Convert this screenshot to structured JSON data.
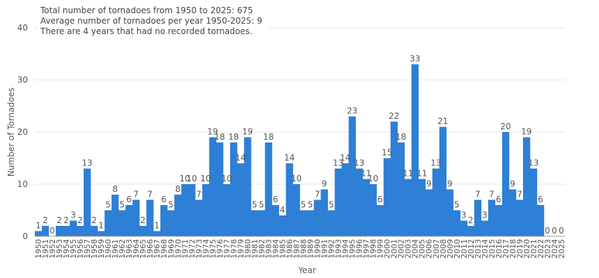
{
  "notes": [
    "Total number of tornadoes from 1950 to 2025: 675",
    "Average number of tornadoes per year 1950-2025: 9",
    "There are 4 years that had no recorded tornadoes."
  ],
  "colors": {
    "bar": "#2e7fd6",
    "grid": "#e4e4e4",
    "text": "#555555",
    "axis": "#999999"
  },
  "chart_data": {
    "type": "bar",
    "xlabel": "Year",
    "ylabel": "Number of Tornadoes",
    "ylim": [
      0,
      40
    ],
    "yticks": [
      0,
      10,
      20,
      30,
      40
    ],
    "grid": true,
    "categories": [
      "1950",
      "1951",
      "1952",
      "1953",
      "1954",
      "1955",
      "1956",
      "1957",
      "1958",
      "1959",
      "1960",
      "1961",
      "1962",
      "1963",
      "1964",
      "1965",
      "1966",
      "1967",
      "1968",
      "1969",
      "1970",
      "1971",
      "1972",
      "1973",
      "1974",
      "1975",
      "1976",
      "1977",
      "1978",
      "1979",
      "1980",
      "1981",
      "1982",
      "1983",
      "1984",
      "1985",
      "1986",
      "1987",
      "1988",
      "1989",
      "1990",
      "1991",
      "1992",
      "1993",
      "1994",
      "1995",
      "1996",
      "1997",
      "1998",
      "1999",
      "2000",
      "2001",
      "2002",
      "2003",
      "2004",
      "2005",
      "2006",
      "2007",
      "2008",
      "2009",
      "2010",
      "2011",
      "2012",
      "2013",
      "2014",
      "2015",
      "2016",
      "2017",
      "2018",
      "2019",
      "2020",
      "2021",
      "2022",
      "2023",
      "2024",
      "2025"
    ],
    "values": [
      1,
      2,
      0,
      2,
      2,
      3,
      2,
      13,
      2,
      1,
      5,
      8,
      5,
      6,
      7,
      2,
      7,
      1,
      6,
      5,
      8,
      10,
      10,
      7,
      10,
      19,
      18,
      10,
      18,
      14,
      19,
      5,
      5,
      18,
      6,
      4,
      14,
      10,
      5,
      5,
      7,
      9,
      5,
      13,
      14,
      23,
      13,
      11,
      10,
      6,
      15,
      22,
      18,
      11,
      33,
      11,
      9,
      13,
      21,
      9,
      5,
      3,
      2,
      7,
      3,
      7,
      6,
      20,
      9,
      7,
      19,
      13,
      6,
      0,
      0,
      0
    ]
  }
}
